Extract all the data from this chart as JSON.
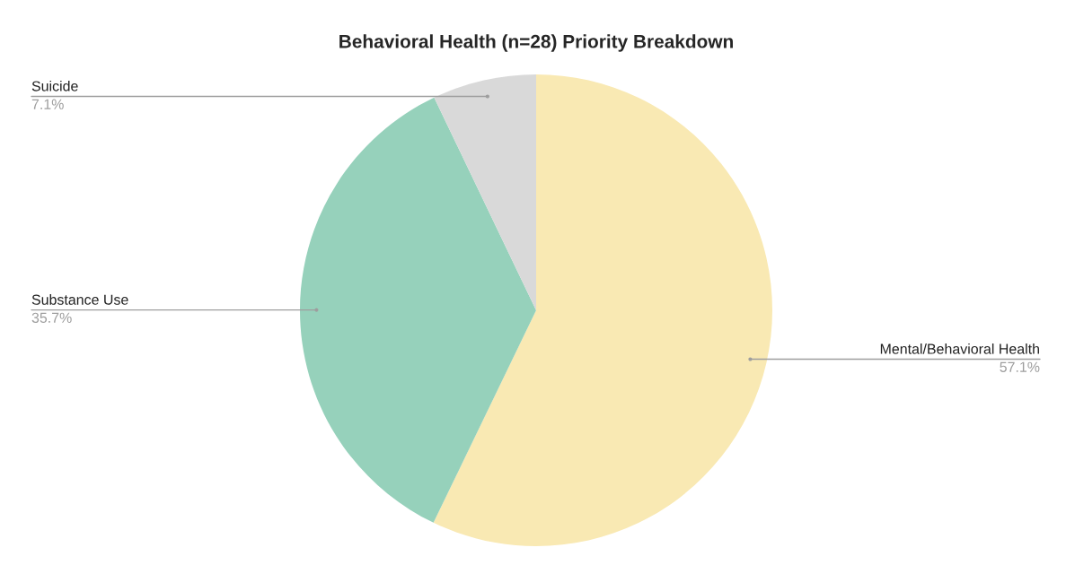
{
  "chart_data": {
    "type": "pie",
    "title": "Behavioral Health (n=28) Priority Breakdown",
    "categories": [
      "Mental/Behavioral Health",
      "Substance Use",
      "Suicide"
    ],
    "values": [
      57.1,
      35.7,
      7.1
    ],
    "value_labels": [
      "57.1%",
      "35.7%",
      "7.1%"
    ],
    "colors": [
      "#f9e9b3",
      "#96d1bb",
      "#d9d9d9"
    ],
    "legend": false
  }
}
